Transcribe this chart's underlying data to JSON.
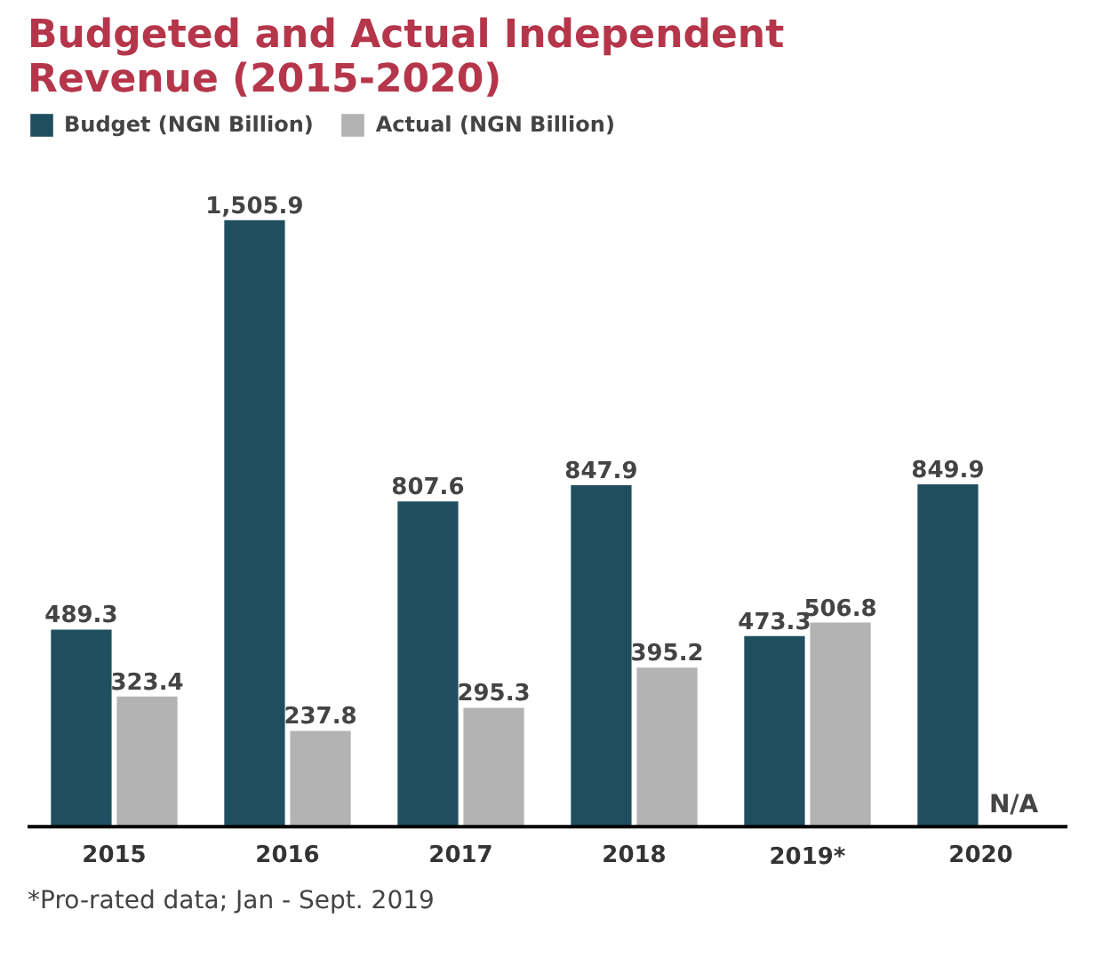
{
  "chart_data": {
    "type": "bar",
    "title": "Budgeted and Actual Independent Revenue (2015-2020)",
    "categories": [
      "2015",
      "2016",
      "2017",
      "2018",
      "2019*",
      "2020"
    ],
    "series": [
      {
        "name": "Budget (NGN Billion)",
        "color": "#1f4e5f",
        "values": [
          489.3,
          1505.9,
          807.6,
          847.9,
          473.3,
          849.9
        ],
        "value_labels": [
          "489.3",
          "1,505.9",
          "807.6",
          "847.9",
          "473.3",
          "849.9"
        ]
      },
      {
        "name": "Actual (NGN Billion)",
        "color": "#b3b3b3",
        "values": [
          323.4,
          237.8,
          295.3,
          395.2,
          506.8,
          null
        ],
        "value_labels": [
          "323.4",
          "237.8",
          "295.3",
          "395.2",
          "506.8",
          null
        ]
      }
    ],
    "annotations": [
      {
        "text": "N/A",
        "x": "2020"
      },
      "*Pro-rated data; Jan - Sept. 2019"
    ],
    "legend": "top left",
    "grid": false,
    "tick_labels": "x"
  }
}
